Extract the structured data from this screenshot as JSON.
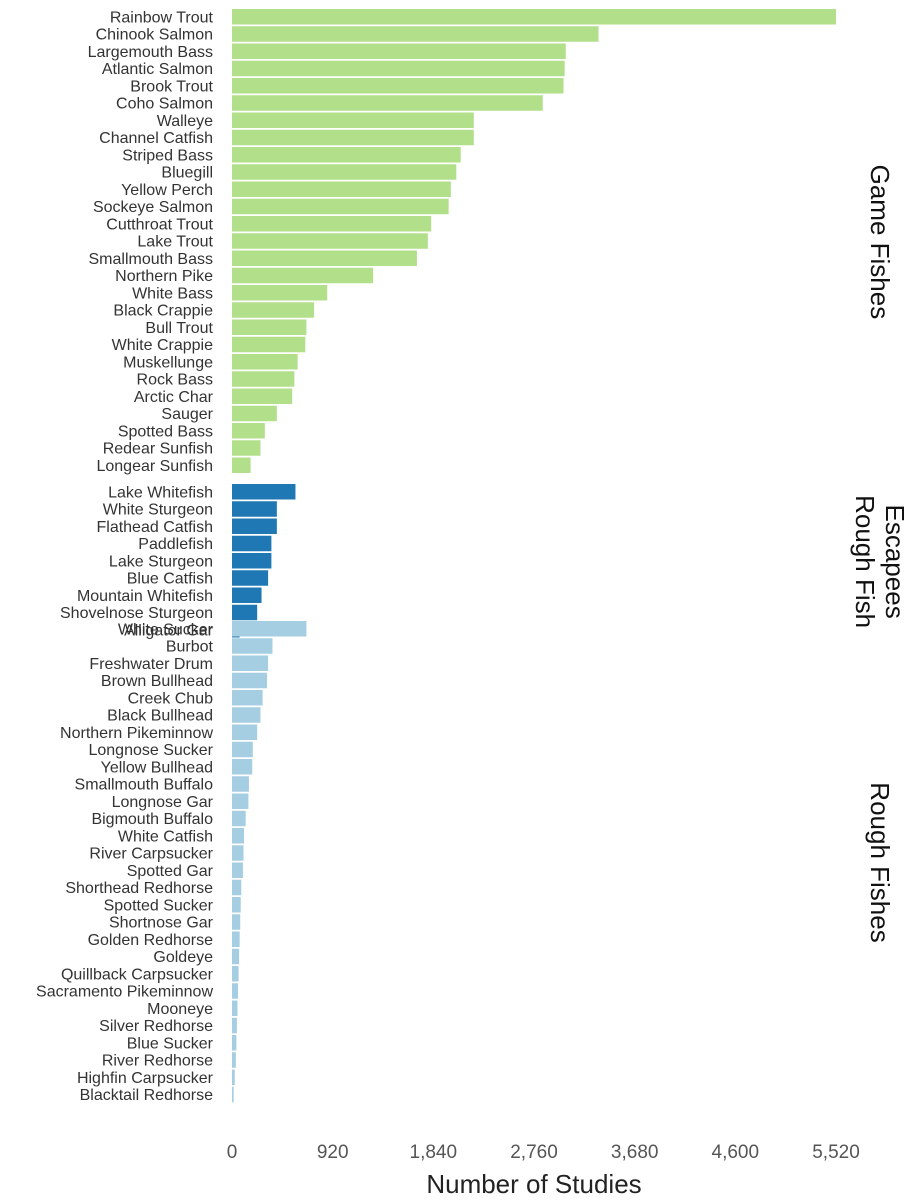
{
  "chart_data": {
    "type": "bar",
    "orientation": "horizontal",
    "xlabel": "Number of Studies",
    "xlim": [
      0,
      5520
    ],
    "xticks": [
      "0",
      "920",
      "1,840",
      "2,760",
      "3,680",
      "4,600",
      "5,520"
    ],
    "grid": false,
    "groups": [
      {
        "name": "Game Fishes",
        "title_lines": [
          "Game Fishes"
        ],
        "color": "#b2df8a",
        "categories": [
          "Rainbow Trout",
          "Chinook Salmon",
          "Largemouth Bass",
          "Atlantic Salmon",
          "Brook Trout",
          "Coho Salmon",
          "Walleye",
          "Channel Catfish",
          "Striped Bass",
          "Bluegill",
          "Yellow Perch",
          "Sockeye Salmon",
          "Cutthroat Trout",
          "Lake Trout",
          "Smallmouth Bass",
          "Northern Pike",
          "White Bass",
          "Black Crappie",
          "Bull Trout",
          "White Crappie",
          "Muskellunge",
          "Rock Bass",
          "Arctic Char",
          "Sauger",
          "Spotted Bass",
          "Redear Sunfish",
          "Longear Sunfish"
        ],
        "values": [
          5520,
          3350,
          3050,
          3040,
          3030,
          2840,
          2210,
          2210,
          2090,
          2050,
          2000,
          1980,
          1820,
          1790,
          1690,
          1290,
          870,
          750,
          680,
          670,
          600,
          570,
          550,
          410,
          300,
          260,
          170
        ]
      },
      {
        "name": "Rough Fish Escapees",
        "title_lines": [
          "Rough Fish",
          "Escapees"
        ],
        "color": "#1f78b4",
        "categories": [
          "Lake Whitefish",
          "White Sturgeon",
          "Flathead Catfish",
          "Paddlefish",
          "Lake Sturgeon",
          "Blue Catfish",
          "Mountain Whitefish",
          "Shovelnose Sturgeon",
          "Alligator Gar"
        ],
        "values": [
          580,
          410,
          410,
          360,
          360,
          330,
          270,
          230,
          70
        ]
      },
      {
        "name": "Rough Fishes",
        "title_lines": [
          "Rough Fishes"
        ],
        "color": "#a6cee3",
        "categories": [
          "White Sucker",
          "Burbot",
          "Freshwater Drum",
          "Brown Bullhead",
          "Creek Chub",
          "Black Bullhead",
          "Northern Pikeminnow",
          "Longnose Sucker",
          "Yellow Bullhead",
          "Smallmouth Buffalo",
          "Longnose Gar",
          "Bigmouth Buffalo",
          "White Catfish",
          "River Carpsucker",
          "Spotted Gar",
          "Shorthead Redhorse",
          "Spotted Sucker",
          "Shortnose Gar",
          "Golden Redhorse",
          "Goldeye",
          "Quillback Carpsucker",
          "Sacramento Pikeminnow",
          "Mooneye",
          "Silver Redhorse",
          "Blue Sucker",
          "River Redhorse",
          "Highfin Carpsucker",
          "Blacktail Redhorse"
        ],
        "values": [
          680,
          370,
          330,
          320,
          280,
          260,
          230,
          190,
          185,
          155,
          150,
          125,
          110,
          105,
          100,
          85,
          80,
          75,
          70,
          65,
          60,
          55,
          50,
          45,
          40,
          35,
          25,
          15
        ]
      }
    ]
  }
}
